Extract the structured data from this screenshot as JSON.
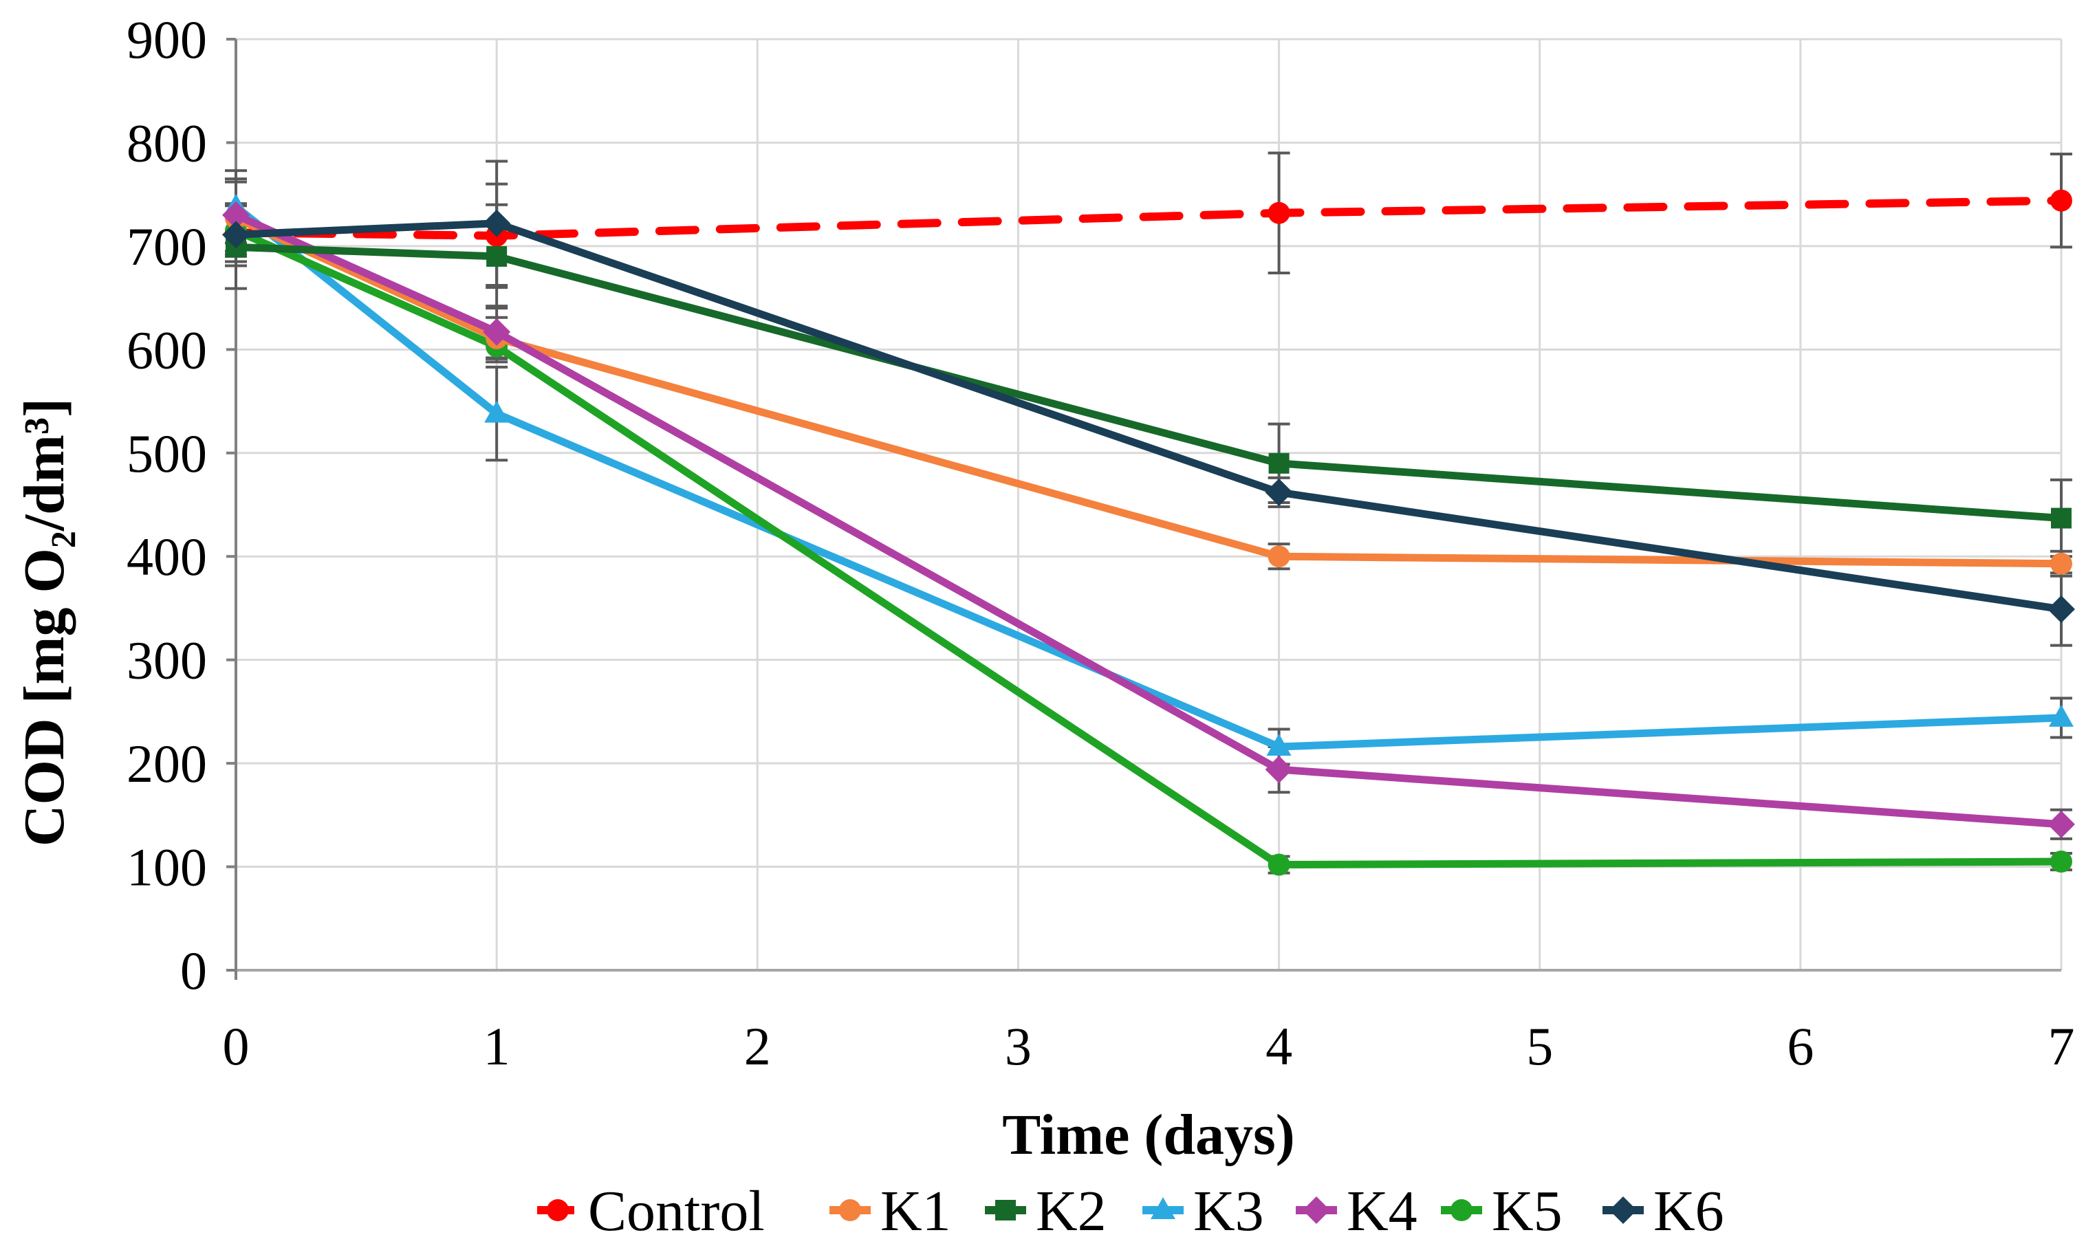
{
  "chart_data": {
    "type": "line",
    "title": "",
    "xlabel": "Time (days)",
    "ylabel": "COD [mg O₂/dm³]",
    "x": [
      0,
      1,
      4,
      7
    ],
    "x_axis_ticks": [
      "0",
      "1",
      "2",
      "3",
      "4",
      "5",
      "6",
      "7"
    ],
    "y_ticks": [
      "0",
      "100",
      "200",
      "300",
      "400",
      "500",
      "600",
      "700",
      "800",
      "900"
    ],
    "xlim": [
      0,
      7
    ],
    "ylim": [
      0,
      900
    ],
    "grid": true,
    "legend_position": "bottom",
    "series": [
      {
        "name": "Control",
        "color": "#FF0000",
        "line_style": "dashed",
        "marker": "circle",
        "values": [
          713,
          710,
          732,
          744
        ],
        "errors": [
          28,
          50,
          58,
          45
        ]
      },
      {
        "name": "K1",
        "color": "#F4813D",
        "line_style": "solid",
        "marker": "circle",
        "values": [
          727,
          611,
          400,
          393
        ],
        "errors": [
          35,
          20,
          12,
          12
        ]
      },
      {
        "name": "K2",
        "color": "#17692A",
        "line_style": "solid",
        "marker": "square",
        "values": [
          699,
          690,
          490,
          437
        ],
        "errors": [
          40,
          50,
          38,
          37
        ]
      },
      {
        "name": "K3",
        "color": "#2CA9E1",
        "line_style": "solid",
        "marker": "triangle",
        "values": [
          738,
          538,
          216,
          244
        ],
        "errors": [
          35,
          45,
          17,
          19
        ]
      },
      {
        "name": "K4",
        "color": "#B03FA3",
        "line_style": "solid",
        "marker": "diamond",
        "values": [
          730,
          617,
          194,
          141
        ],
        "errors": [
          35,
          25,
          22,
          14
        ]
      },
      {
        "name": "K5",
        "color": "#1FA324",
        "line_style": "solid",
        "marker": "circle",
        "values": [
          715,
          603,
          102,
          105
        ],
        "errors": [
          25,
          15,
          8,
          8
        ]
      },
      {
        "name": "K6",
        "color": "#1A3E55",
        "line_style": "solid",
        "marker": "diamond",
        "values": [
          711,
          722,
          462,
          349
        ],
        "errors": [
          30,
          60,
          14,
          35
        ]
      }
    ],
    "draw_order": [
      "Control",
      "K3",
      "K5",
      "K1",
      "K4",
      "K2",
      "K6"
    ],
    "legend_labels": [
      "Control",
      "K1",
      "K2",
      "K3",
      "K4",
      "K5",
      "K6"
    ]
  },
  "colors": {
    "background": "#FFFFFF",
    "gridline": "#D9D9D9",
    "y_axis": "#808080",
    "x_axis": "#A6A6A6",
    "error_bar": "#595959",
    "text": "#000000"
  }
}
